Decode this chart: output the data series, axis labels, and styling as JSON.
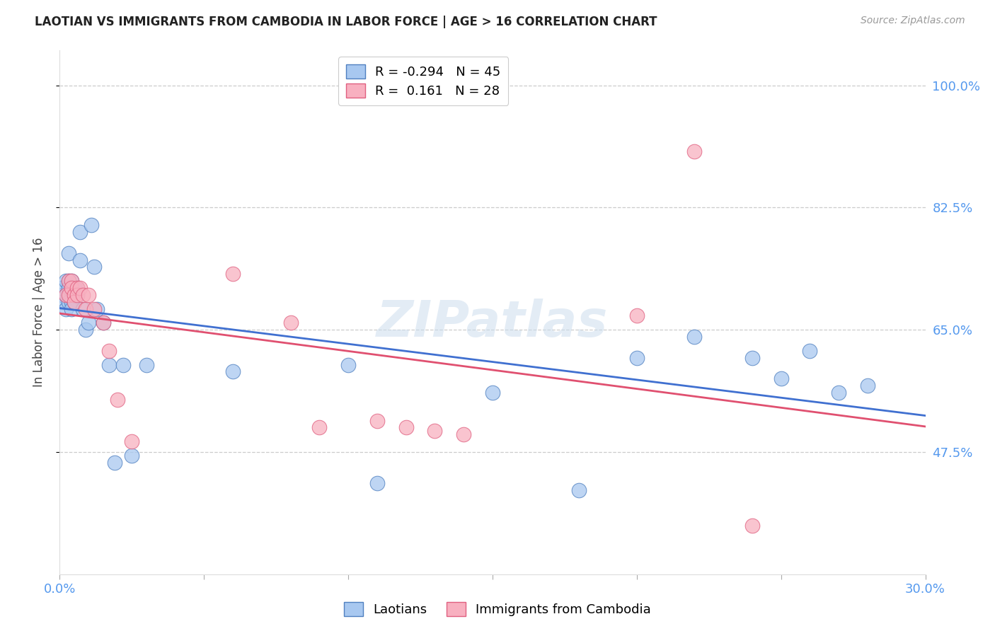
{
  "title": "LAOTIAN VS IMMIGRANTS FROM CAMBODIA IN LABOR FORCE | AGE > 16 CORRELATION CHART",
  "source": "Source: ZipAtlas.com",
  "ylabel": "In Labor Force | Age > 16",
  "watermark": "ZIPatlas",
  "xlim": [
    0.0,
    0.3
  ],
  "ylim": [
    0.3,
    1.05
  ],
  "xticks": [
    0.0,
    0.05,
    0.1,
    0.15,
    0.2,
    0.25,
    0.3
  ],
  "xtick_labels": [
    "0.0%",
    "",
    "",
    "",
    "",
    "",
    "30.0%"
  ],
  "ytick_labels_right": [
    "100.0%",
    "82.5%",
    "65.0%",
    "47.5%"
  ],
  "ytick_values_right": [
    1.0,
    0.825,
    0.65,
    0.475
  ],
  "blue_R": -0.294,
  "blue_N": 45,
  "pink_R": 0.161,
  "pink_N": 28,
  "blue_color": "#a8c8f0",
  "pink_color": "#f8b0c0",
  "blue_edge_color": "#5080c0",
  "pink_edge_color": "#e06080",
  "blue_line_color": "#4070d0",
  "pink_line_color": "#e05070",
  "background_color": "#ffffff",
  "grid_color": "#cccccc",
  "label_color": "#5599ee",
  "title_color": "#222222",
  "blue_x": [
    0.001,
    0.001,
    0.001,
    0.002,
    0.002,
    0.002,
    0.003,
    0.003,
    0.003,
    0.003,
    0.004,
    0.004,
    0.004,
    0.004,
    0.005,
    0.005,
    0.005,
    0.006,
    0.006,
    0.007,
    0.007,
    0.008,
    0.009,
    0.01,
    0.011,
    0.012,
    0.013,
    0.015,
    0.017,
    0.019,
    0.022,
    0.025,
    0.03,
    0.06,
    0.1,
    0.11,
    0.15,
    0.18,
    0.2,
    0.22,
    0.24,
    0.25,
    0.26,
    0.27,
    0.28
  ],
  "blue_y": [
    0.7,
    0.71,
    0.69,
    0.72,
    0.7,
    0.68,
    0.76,
    0.72,
    0.71,
    0.69,
    0.72,
    0.71,
    0.69,
    0.68,
    0.71,
    0.7,
    0.69,
    0.71,
    0.7,
    0.79,
    0.75,
    0.68,
    0.65,
    0.66,
    0.8,
    0.74,
    0.68,
    0.66,
    0.6,
    0.46,
    0.6,
    0.47,
    0.6,
    0.59,
    0.6,
    0.43,
    0.56,
    0.42,
    0.61,
    0.64,
    0.61,
    0.58,
    0.62,
    0.56,
    0.57
  ],
  "pink_x": [
    0.002,
    0.003,
    0.003,
    0.004,
    0.004,
    0.005,
    0.005,
    0.006,
    0.006,
    0.007,
    0.008,
    0.009,
    0.01,
    0.012,
    0.015,
    0.017,
    0.02,
    0.025,
    0.06,
    0.08,
    0.09,
    0.11,
    0.12,
    0.13,
    0.14,
    0.2,
    0.22,
    0.24
  ],
  "pink_y": [
    0.7,
    0.72,
    0.7,
    0.72,
    0.71,
    0.7,
    0.69,
    0.71,
    0.7,
    0.71,
    0.7,
    0.68,
    0.7,
    0.68,
    0.66,
    0.62,
    0.55,
    0.49,
    0.73,
    0.66,
    0.51,
    0.52,
    0.51,
    0.505,
    0.5,
    0.67,
    0.905,
    0.37
  ]
}
